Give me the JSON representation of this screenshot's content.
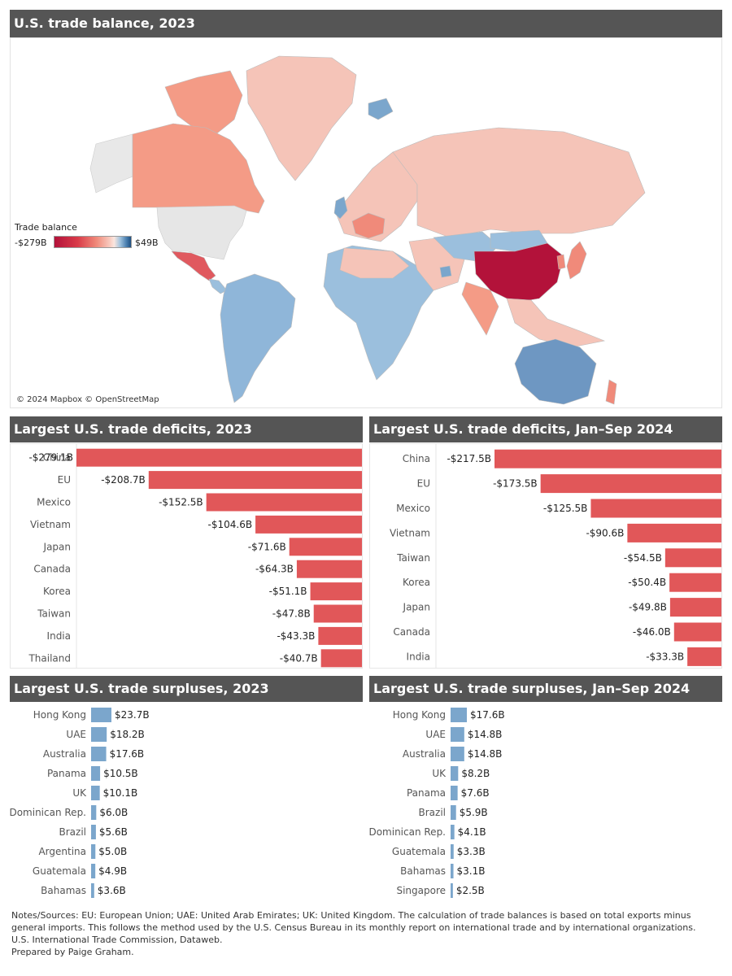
{
  "map": {
    "title": "U.S. trade balance, 2023",
    "legend_title": "Trade balance",
    "legend_min": "-$279B",
    "legend_max": "$49B",
    "credit": "© 2024 Mapbox © OpenStreetMap"
  },
  "colors": {
    "deficit": "#e15759",
    "surplus": "#7ba6cc",
    "header": "#555555"
  },
  "chart_data": [
    {
      "type": "bar",
      "orientation": "horizontal",
      "title": "Largest U.S. trade deficits, 2023",
      "categories": [
        "China",
        "EU",
        "Mexico",
        "Vietnam",
        "Japan",
        "Canada",
        "Korea",
        "Taiwan",
        "India",
        "Thailand"
      ],
      "values": [
        -279.1,
        -208.7,
        -152.5,
        -104.6,
        -71.6,
        -64.3,
        -51.1,
        -47.8,
        -43.3,
        -40.7
      ],
      "labels": [
        "-$279.1B",
        "-$208.7B",
        "-$152.5B",
        "-$104.6B",
        "-$71.6B",
        "-$64.3B",
        "-$51.1B",
        "-$47.8B",
        "-$43.3B",
        "-$40.7B"
      ],
      "unit": "billion USD"
    },
    {
      "type": "bar",
      "orientation": "horizontal",
      "title": "Largest U.S. trade deficits, Jan–Sep 2024",
      "categories": [
        "China",
        "EU",
        "Mexico",
        "Vietnam",
        "Taiwan",
        "Korea",
        "Japan",
        "Canada",
        "India"
      ],
      "values": [
        -217.5,
        -173.5,
        -125.5,
        -90.6,
        -54.5,
        -50.4,
        -49.8,
        -46.0,
        -33.3
      ],
      "labels": [
        "-$217.5B",
        "-$173.5B",
        "-$125.5B",
        "-$90.6B",
        "-$54.5B",
        "-$50.4B",
        "-$49.8B",
        "-$46.0B",
        "-$33.3B"
      ],
      "unit": "billion USD"
    },
    {
      "type": "bar",
      "orientation": "horizontal",
      "title": "Largest U.S. trade surpluses, 2023",
      "categories": [
        "Hong Kong",
        "UAE",
        "Australia",
        "Panama",
        "UK",
        "Dominican Rep.",
        "Brazil",
        "Argentina",
        "Guatemala",
        "Bahamas"
      ],
      "values": [
        23.7,
        18.2,
        17.6,
        10.5,
        10.1,
        6.0,
        5.6,
        5.0,
        4.9,
        3.6
      ],
      "labels": [
        "$23.7B",
        "$18.2B",
        "$17.6B",
        "$10.5B",
        "$10.1B",
        "$6.0B",
        "$5.6B",
        "$5.0B",
        "$4.9B",
        "$3.6B"
      ],
      "unit": "billion USD"
    },
    {
      "type": "bar",
      "orientation": "horizontal",
      "title": "Largest U.S. trade surpluses, Jan–Sep 2024",
      "categories": [
        "Hong Kong",
        "UAE",
        "Australia",
        "UK",
        "Panama",
        "Brazil",
        "Dominican Rep.",
        "Guatemala",
        "Bahamas",
        "Singapore"
      ],
      "values": [
        17.6,
        14.8,
        14.8,
        8.2,
        7.6,
        5.9,
        4.1,
        3.3,
        3.1,
        2.5
      ],
      "labels": [
        "$17.6B",
        "$14.8B",
        "$14.8B",
        "$8.2B",
        "$7.6B",
        "$5.9B",
        "$4.1B",
        "$3.3B",
        "$3.1B",
        "$2.5B"
      ],
      "unit": "billion USD"
    }
  ],
  "notes": [
    "Notes/Sources: EU: European Union; UAE: United Arab Emirates; UK: United Kingdom. The calculation of trade balances is based on total exports minus",
    "general imports. This follows the method used by the U.S. Census Bureau in its monthly report on international trade and by international organizations.",
    "U.S. International Trade Commission, Dataweb.",
    "Prepared by Paige Graham."
  ]
}
